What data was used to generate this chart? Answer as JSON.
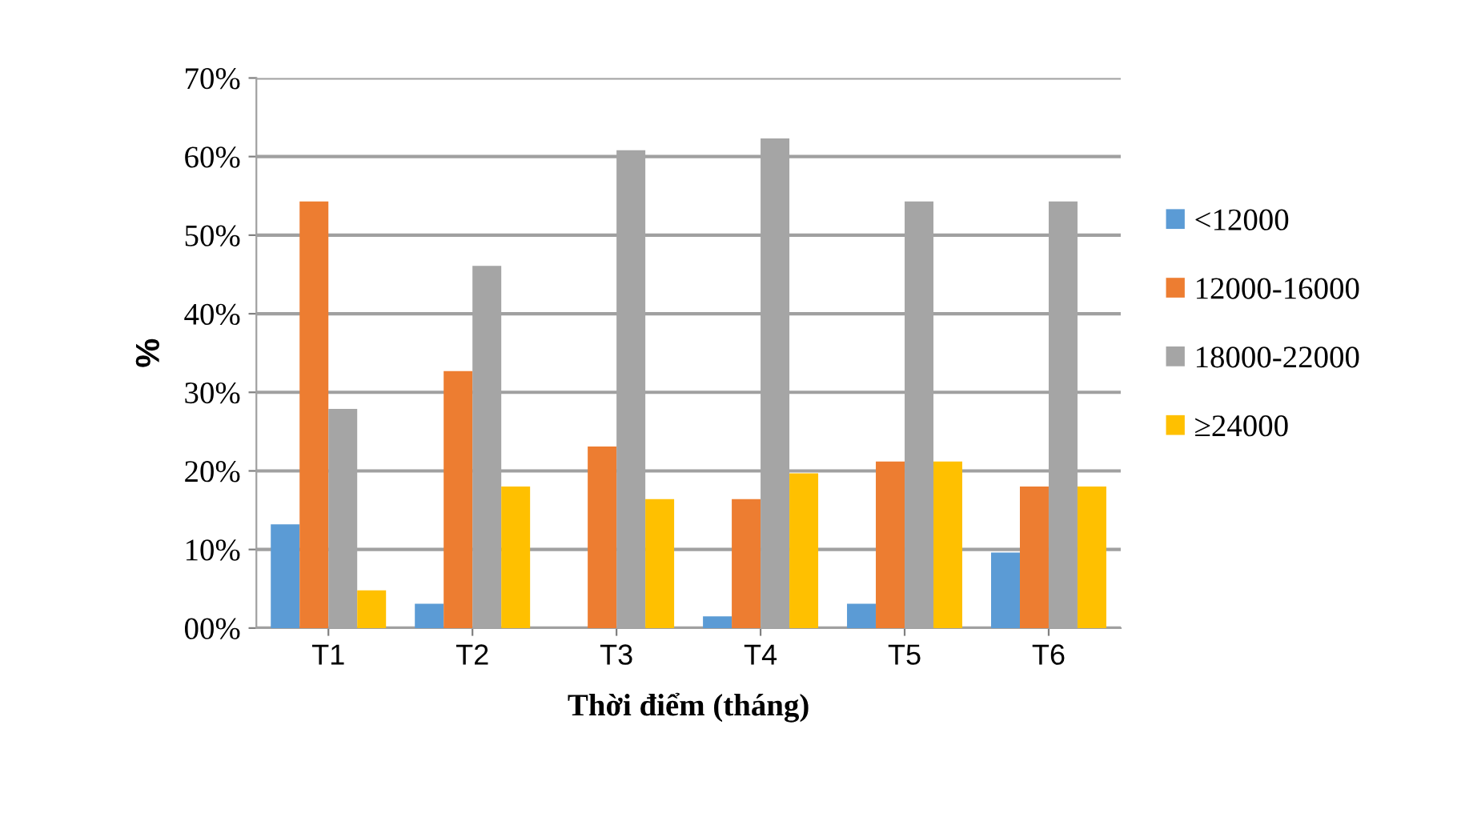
{
  "chart_data": {
    "type": "bar",
    "xlabel": "Thời điểm (tháng)",
    "ylabel": "%",
    "categories": [
      "T1",
      "T2",
      "T3",
      "T4",
      "T5",
      "T6"
    ],
    "series": [
      {
        "name": "<12000",
        "color": "#5b9bd5",
        "values": [
          13.2,
          3.1,
          0,
          1.5,
          3.1,
          9.6
        ]
      },
      {
        "name": "12000-16000",
        "color": "#ed7d31",
        "values": [
          54.3,
          32.7,
          23.1,
          16.4,
          21.2,
          18.0
        ]
      },
      {
        "name": "18000-22000",
        "color": "#a5a5a5",
        "values": [
          27.9,
          46.1,
          60.8,
          62.3,
          54.3,
          54.3
        ]
      },
      {
        "name": "≥24000",
        "color": "#ffc000",
        "values": [
          4.8,
          18.0,
          16.4,
          19.7,
          21.2,
          18.0
        ]
      }
    ],
    "ylim": [
      0,
      70
    ],
    "yticks": [
      {
        "value": 0,
        "label": "00%"
      },
      {
        "value": 10,
        "label": "10%"
      },
      {
        "value": 20,
        "label": "20%"
      },
      {
        "value": 30,
        "label": "30%"
      },
      {
        "value": 40,
        "label": "40%"
      },
      {
        "value": 50,
        "label": "50%"
      },
      {
        "value": 60,
        "label": "60%"
      },
      {
        "value": 70,
        "label": "70%"
      }
    ],
    "grid": "y",
    "legend": "right"
  }
}
